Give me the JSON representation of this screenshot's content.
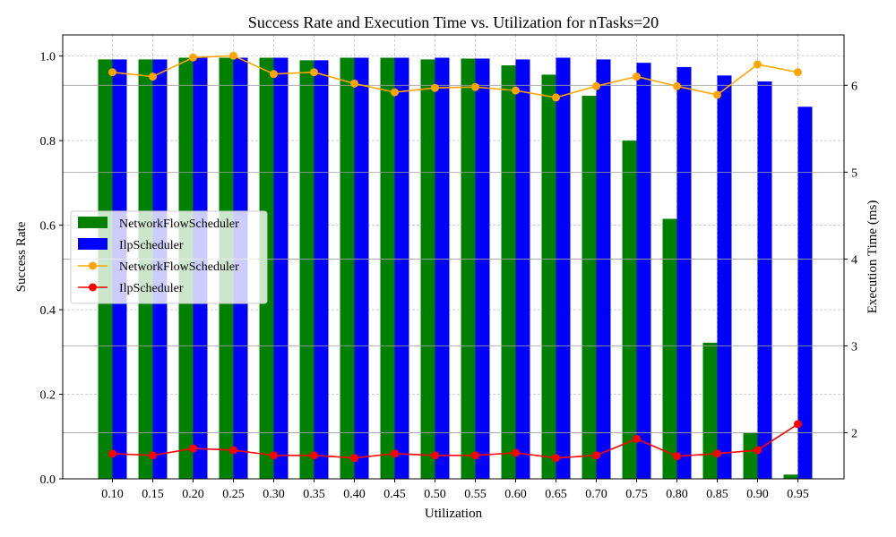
{
  "chart_data": {
    "type": "bar+line",
    "title": "Success Rate and Execution Time vs. Utilization for nTasks=20",
    "xlabel": "Utilization",
    "ylabel_left": "Success Rate",
    "ylabel_right": "Execution Time (ms)",
    "categories": [
      "0.10",
      "0.15",
      "0.20",
      "0.25",
      "0.30",
      "0.35",
      "0.40",
      "0.45",
      "0.50",
      "0.55",
      "0.60",
      "0.65",
      "0.70",
      "0.75",
      "0.80",
      "0.85",
      "0.90",
      "0.95"
    ],
    "ylim_left": [
      0,
      1.05
    ],
    "yticks_left": [
      "0.0",
      "0.2",
      "0.4",
      "0.6",
      "0.8",
      "1.0"
    ],
    "ylim_right": [
      1.47,
      6.58
    ],
    "yticks_right": [
      "2",
      "3",
      "4",
      "5",
      "6"
    ],
    "grid": true,
    "legend_location": "center-left",
    "bar_series": [
      {
        "name": "NetworkFlowScheduler",
        "color": "#008000",
        "values": [
          0.992,
          0.992,
          0.996,
          0.996,
          0.996,
          0.99,
          0.996,
          0.996,
          0.992,
          0.994,
          0.978,
          0.956,
          0.906,
          0.8,
          0.615,
          0.322,
          0.108,
          0.01
        ]
      },
      {
        "name": "IlpScheduler",
        "color": "#0000ff",
        "values": [
          0.992,
          0.992,
          0.996,
          0.996,
          0.996,
          0.99,
          0.996,
          0.996,
          0.996,
          0.994,
          0.992,
          0.996,
          0.992,
          0.984,
          0.974,
          0.954,
          0.94,
          0.88
        ]
      }
    ],
    "line_series": [
      {
        "name": "NetworkFlowScheduler",
        "color": "#ffa500",
        "values": [
          6.15,
          6.1,
          6.32,
          6.34,
          6.13,
          6.15,
          6.02,
          5.92,
          5.97,
          5.98,
          5.94,
          5.86,
          5.99,
          6.1,
          5.99,
          5.89,
          6.24,
          6.15
        ]
      },
      {
        "name": "IlpScheduler",
        "color": "#ff0000",
        "values": [
          1.76,
          1.74,
          1.82,
          1.8,
          1.74,
          1.74,
          1.71,
          1.76,
          1.74,
          1.74,
          1.77,
          1.71,
          1.74,
          1.93,
          1.73,
          1.76,
          1.8,
          2.1
        ]
      }
    ]
  }
}
